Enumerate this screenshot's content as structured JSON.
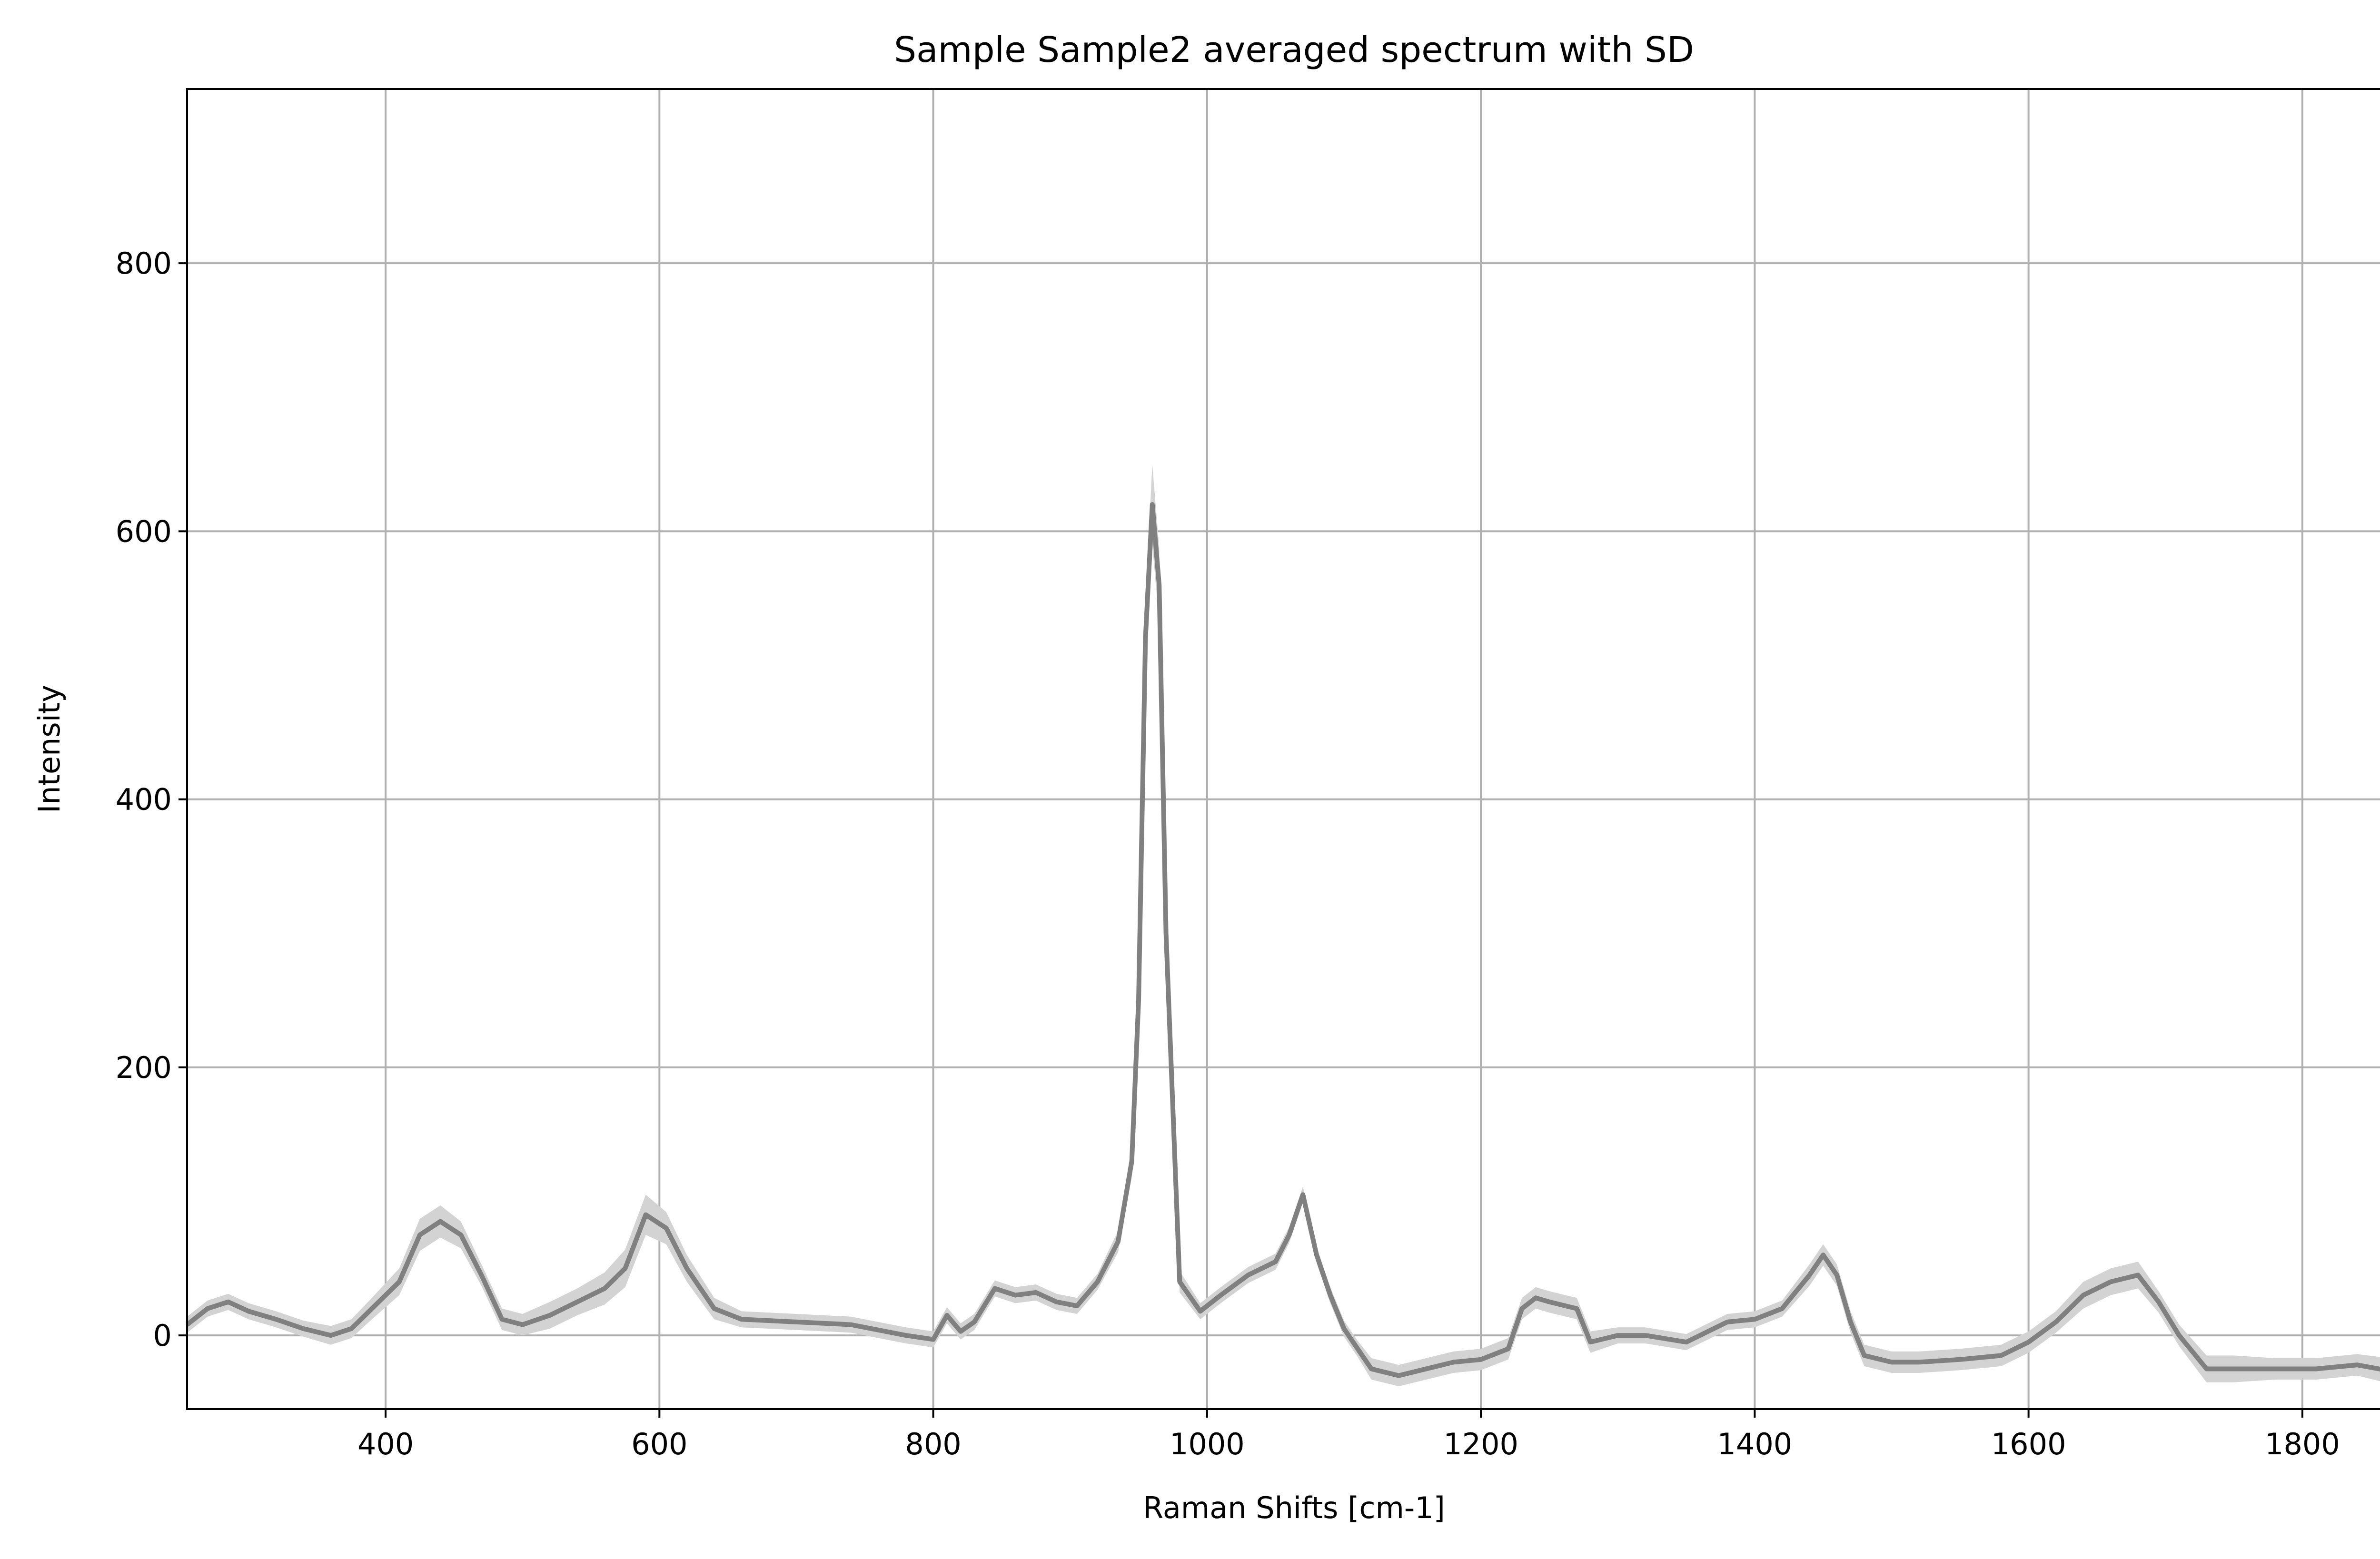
{
  "chart_data": {
    "type": "line",
    "title": "Sample Sample2 averaged spectrum with SD",
    "xlabel": "Raman Shifts [cm-1]",
    "ylabel": "Intensity",
    "xlim": [
      255,
      1872
    ],
    "ylim": [
      -55,
      930
    ],
    "xticks": [
      400,
      600,
      800,
      1000,
      1200,
      1400,
      1600,
      1800
    ],
    "yticks": [
      0,
      200,
      400,
      600,
      800
    ],
    "grid": true,
    "colors": {
      "line": "#808080",
      "band": "#d3d3d3",
      "grid": "#b0b0b0"
    },
    "series": [
      {
        "x": [
          255,
          270,
          285,
          300,
          320,
          340,
          360,
          375,
          390,
          410,
          425,
          440,
          455,
          470,
          485,
          500,
          520,
          540,
          560,
          575,
          590,
          605,
          620,
          640,
          660,
          700,
          740,
          780,
          800,
          810,
          820,
          830,
          845,
          860,
          875,
          890,
          905,
          920,
          935,
          945,
          950,
          955,
          960,
          965,
          970,
          980,
          995,
          1010,
          1030,
          1050,
          1060,
          1070,
          1080,
          1090,
          1100,
          1110,
          1120,
          1140,
          1160,
          1180,
          1200,
          1220,
          1230,
          1240,
          1250,
          1270,
          1280,
          1300,
          1320,
          1350,
          1380,
          1400,
          1420,
          1440,
          1450,
          1460,
          1470,
          1480,
          1500,
          1520,
          1550,
          1580,
          1600,
          1620,
          1640,
          1660,
          1680,
          1695,
          1710,
          1730,
          1750,
          1780,
          1810,
          1840,
          1872
        ],
        "values": [
          8,
          20,
          25,
          18,
          12,
          5,
          0,
          5,
          20,
          40,
          75,
          85,
          75,
          45,
          12,
          8,
          15,
          25,
          35,
          50,
          90,
          80,
          50,
          20,
          12,
          10,
          8,
          0,
          -3,
          15,
          3,
          10,
          35,
          30,
          32,
          25,
          22,
          40,
          70,
          130,
          250,
          520,
          620,
          560,
          300,
          40,
          18,
          30,
          45,
          55,
          75,
          105,
          60,
          30,
          5,
          -10,
          -25,
          -30,
          -25,
          -20,
          -18,
          -10,
          20,
          28,
          25,
          20,
          -5,
          0,
          0,
          -5,
          10,
          12,
          20,
          45,
          60,
          45,
          10,
          -15,
          -20,
          -20,
          -18,
          -15,
          -5,
          10,
          30,
          40,
          45,
          25,
          0,
          -25,
          -25,
          -25,
          -25,
          -22,
          -28
        ],
        "sd": [
          6,
          6,
          6,
          6,
          6,
          6,
          7,
          7,
          8,
          10,
          12,
          12,
          10,
          8,
          8,
          8,
          10,
          10,
          12,
          14,
          15,
          12,
          10,
          8,
          6,
          6,
          6,
          6,
          6,
          6,
          6,
          6,
          6,
          6,
          6,
          6,
          6,
          6,
          8,
          12,
          20,
          28,
          30,
          28,
          20,
          8,
          6,
          6,
          6,
          6,
          6,
          6,
          6,
          6,
          6,
          6,
          8,
          8,
          8,
          8,
          8,
          8,
          8,
          8,
          8,
          8,
          8,
          6,
          6,
          6,
          6,
          6,
          6,
          8,
          8,
          8,
          8,
          8,
          8,
          8,
          8,
          8,
          8,
          8,
          10,
          10,
          10,
          8,
          8,
          10,
          10,
          8,
          8,
          8,
          10
        ]
      }
    ]
  }
}
